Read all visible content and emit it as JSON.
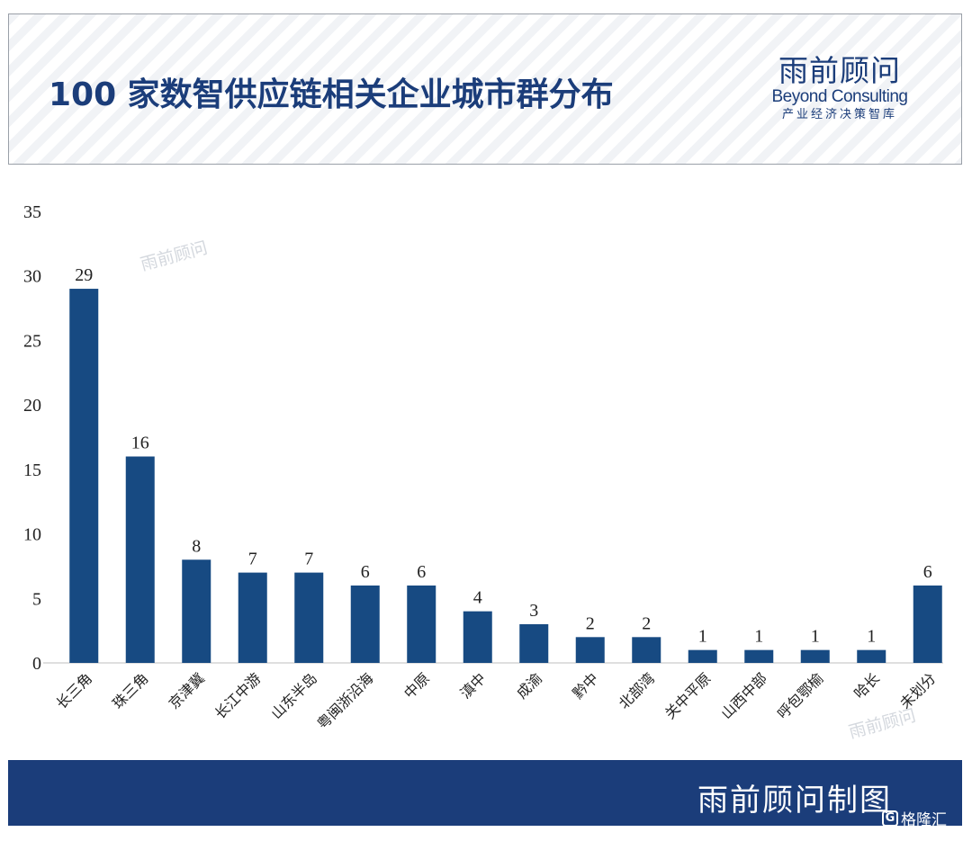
{
  "header": {
    "title": "100 家数智供应链相关企业城市群分布",
    "brand_cn": "雨前顾问",
    "brand_en": "Beyond Consulting",
    "brand_sub": "产业经济决策智库"
  },
  "watermark": "雨前顾问",
  "footer": {
    "caption": "雨前顾问制图",
    "badge_text": "格隆汇"
  },
  "colors": {
    "bar": "#174a82",
    "title": "#1b3d7a",
    "footer_bg": "#1b3d7a"
  },
  "chart_data": {
    "type": "bar",
    "categories": [
      "长三角",
      "珠三角",
      "京津冀",
      "长江中游",
      "山东半岛",
      "粤闽浙沿海",
      "中原",
      "滇中",
      "成渝",
      "黔中",
      "北部湾",
      "关中平原",
      "山西中部",
      "呼包鄂榆",
      "哈长",
      "未划分"
    ],
    "values": [
      29,
      16,
      8,
      7,
      7,
      6,
      6,
      4,
      3,
      2,
      2,
      1,
      1,
      1,
      1,
      6
    ],
    "ylim": [
      0,
      35
    ],
    "yticks": [
      0,
      5,
      10,
      15,
      20,
      25,
      30,
      35
    ],
    "data_labels": true,
    "grid": false,
    "xlabel": "",
    "ylabel": ""
  }
}
